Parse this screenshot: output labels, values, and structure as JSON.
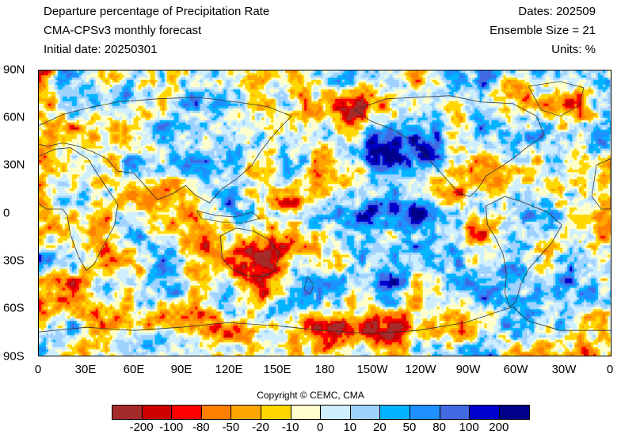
{
  "header": {
    "title": "Departure percentage of Precipitation Rate",
    "model": "CMA-CPSv3 monthly forecast",
    "initial_date": "Initial date: 20250301",
    "dates": "Dates: 202509",
    "ensemble": "Ensemble Size = 21",
    "units": "Units: %"
  },
  "axes": {
    "lat_labels": [
      "90N",
      "60N",
      "30N",
      "0",
      "30S",
      "60S",
      "90S"
    ],
    "lon_labels": [
      "0",
      "30E",
      "60E",
      "90E",
      "120E",
      "150E",
      "180",
      "150W",
      "120W",
      "90W",
      "60W",
      "30W",
      "0"
    ]
  },
  "copyright": "Copyright © CEMC, CMA",
  "colorbar": {
    "colors": [
      "#a52a2a",
      "#cd0000",
      "#ff0000",
      "#ff7f00",
      "#ffa500",
      "#ffd700",
      "#ffffcc",
      "#cfefff",
      "#a0d2ff",
      "#00b4ff",
      "#1e90ff",
      "#4169e1",
      "#0000cd",
      "#00008b"
    ],
    "labels": [
      "-200",
      "-100",
      "-80",
      "-50",
      "-20",
      "-10",
      "0",
      "10",
      "20",
      "50",
      "80",
      "100",
      "200"
    ]
  }
}
